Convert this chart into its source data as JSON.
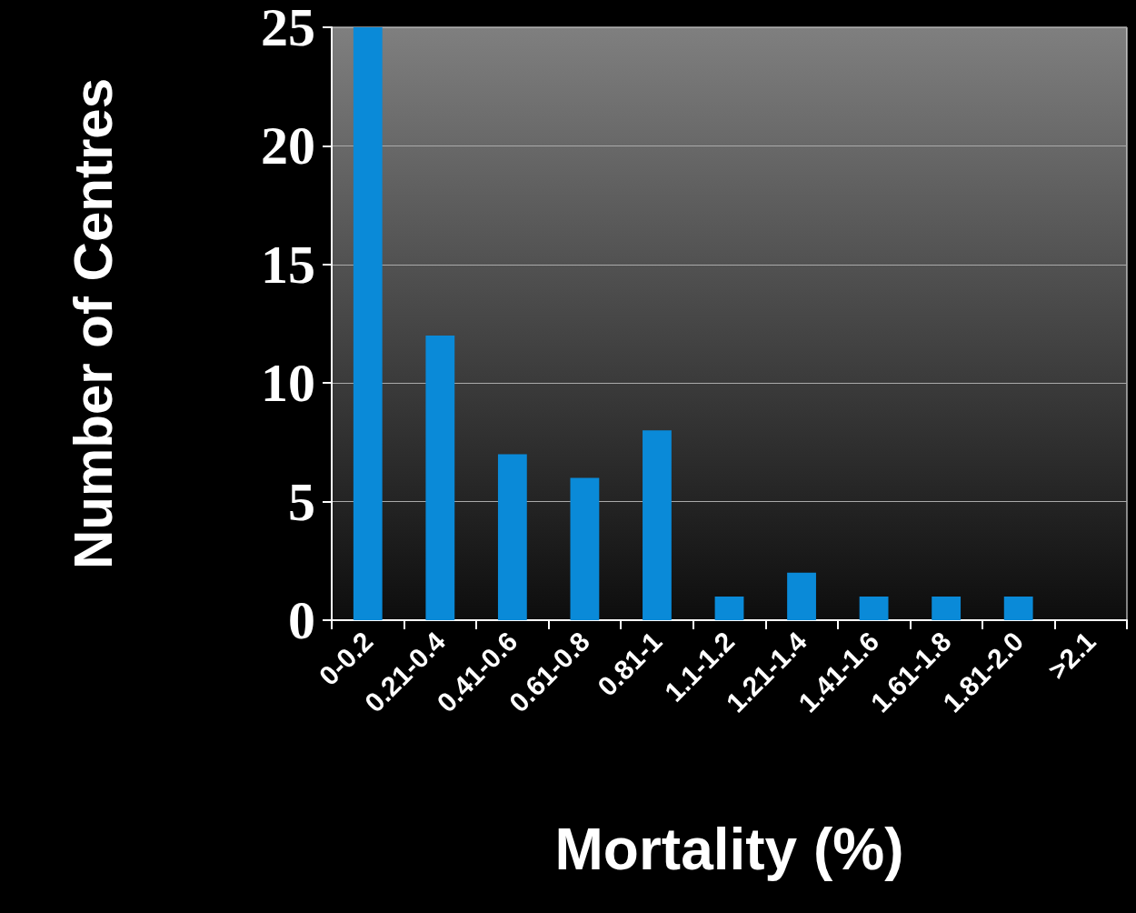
{
  "chart_data": {
    "type": "bar",
    "xlabel": "Mortality (%)",
    "ylabel": "Number of Centres",
    "categories": [
      "0-0.2",
      "0.21-0.4",
      "0.41-0.6",
      "0.61-0.8",
      "0.81-1",
      "1.1-1.2",
      "1.21-1.4",
      "1.41-1.6",
      "1.61-1.8",
      "1.81-2.0",
      ">2.1"
    ],
    "values": [
      25,
      12,
      7,
      6,
      8,
      1,
      2,
      1,
      1,
      1,
      0
    ],
    "color": "#0a8ad8",
    "ylim": [
      0,
      25
    ],
    "yticks": [
      0,
      5,
      10,
      15,
      20,
      25
    ],
    "grid": "y"
  }
}
